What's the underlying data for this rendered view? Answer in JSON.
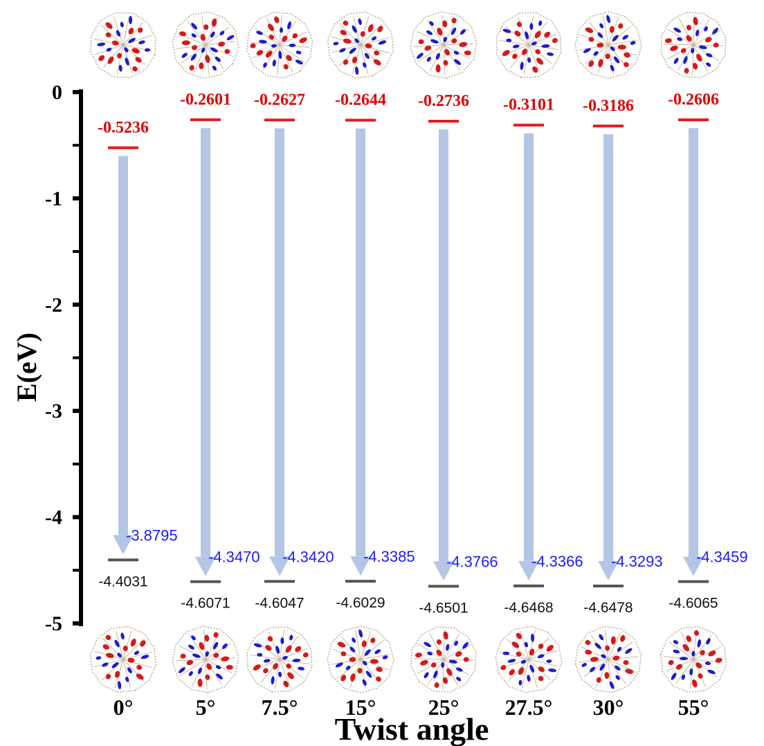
{
  "chart_data": {
    "type": "energy-level-diagram",
    "xlabel": "Twist  angle",
    "ylabel": "E(eV)",
    "ylim": [
      -5,
      0
    ],
    "yticks": [
      "0",
      "-1",
      "-2",
      "-3",
      "-4",
      "-5"
    ],
    "categories": [
      "0°",
      "5°",
      "7.5°",
      "15°",
      "25°",
      "27.5°",
      "30°",
      "55°"
    ],
    "series": [
      {
        "values": [
          -0.5236,
          -0.2601,
          -0.2627,
          -0.2644,
          -0.2736,
          -0.3101,
          -0.3186,
          -0.2606
        ],
        "labels": [
          "-0.5236",
          "-0.2601",
          "-0.2627",
          "-0.2644",
          "-0.2736",
          "-0.3101",
          "-0.3186",
          "-0.2606"
        ]
      },
      {
        "values": [
          -4.4031,
          -4.6071,
          -4.6047,
          -4.6029,
          -4.6501,
          -4.6468,
          -4.6478,
          -4.6065
        ],
        "labels": [
          "-4.4031",
          "-4.6071",
          "-4.6047",
          "-4.6029",
          "-4.6501",
          "-4.6468",
          "-4.6478",
          "-4.6065"
        ]
      }
    ],
    "gaps": {
      "values": [
        -3.8795,
        -4.347,
        -4.342,
        -4.3385,
        -4.3766,
        -4.3366,
        -4.3293,
        -4.3459
      ],
      "labels": [
        "-3.8795",
        "-4.3470",
        "-4.3420",
        "-4.3385",
        "-4.3766",
        "-4.3366",
        "-4.3293",
        "-4.3459"
      ]
    },
    "colors": {
      "lumo": "#e41a1c",
      "homo": "#555555",
      "arrow": "#b3c6e6",
      "gap_text": "#1a1aff",
      "lumo_text": "#e00000"
    },
    "molecule_images": {
      "top_row": "LUMO orbital plots",
      "bottom_row": "HOMO orbital plots"
    }
  }
}
